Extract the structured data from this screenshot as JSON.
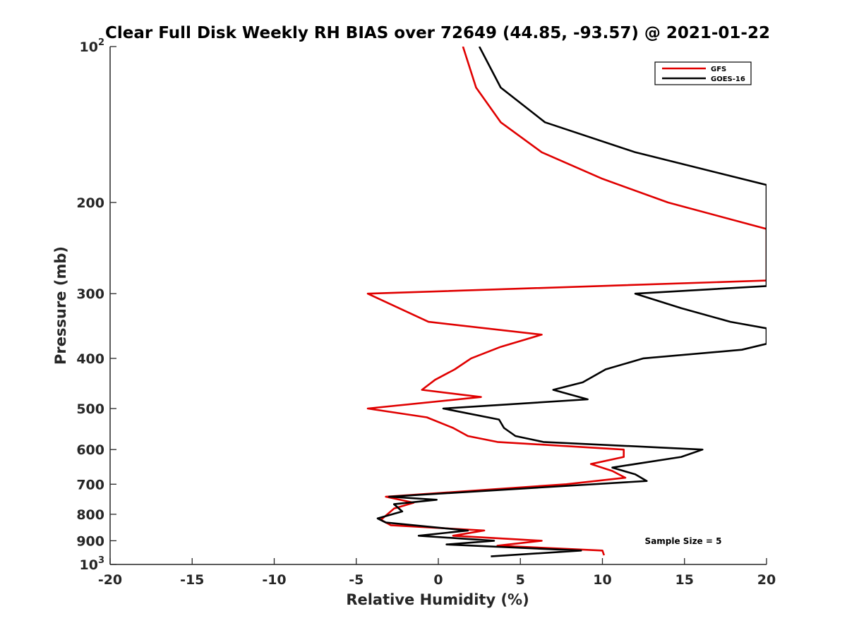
{
  "chart_data": {
    "type": "line",
    "title": "Clear Full Disk Weekly RH BIAS over 72649 (44.85, -93.57) @ 2021-01-22",
    "xlabel": "Relative Humidity (%)",
    "ylabel": "Pressure (mb)",
    "xlim": [
      -20,
      20
    ],
    "ylim": [
      100,
      1000
    ],
    "y_scale": "log",
    "y_reversed": true,
    "grid": false,
    "legend_position": "top-right",
    "x_ticks": [
      "-20",
      "-15",
      "-10",
      "-5",
      "0",
      "5",
      "10",
      "15",
      "20"
    ],
    "x_tick_values": [
      -20,
      -15,
      -10,
      -5,
      0,
      5,
      10,
      15,
      20
    ],
    "y_ticks": [
      {
        "value": 100,
        "base": "10",
        "exp": "2"
      },
      {
        "value": 200,
        "base": "200",
        "exp": ""
      },
      {
        "value": 300,
        "base": "300",
        "exp": ""
      },
      {
        "value": 400,
        "base": "400",
        "exp": ""
      },
      {
        "value": 500,
        "base": "500",
        "exp": ""
      },
      {
        "value": 600,
        "base": "600",
        "exp": ""
      },
      {
        "value": 700,
        "base": "700",
        "exp": ""
      },
      {
        "value": 800,
        "base": "800",
        "exp": ""
      },
      {
        "value": 900,
        "base": "900",
        "exp": ""
      },
      {
        "value": 1000,
        "base": "10",
        "exp": "3"
      }
    ],
    "series": [
      {
        "name": "GFS",
        "color": "#e00000",
        "points": [
          [
            1.5,
            100
          ],
          [
            2.3,
            120
          ],
          [
            3.8,
            140
          ],
          [
            6.3,
            160
          ],
          [
            10,
            180
          ],
          [
            14,
            200
          ],
          [
            20,
            225
          ],
          [
            20,
            283
          ],
          [
            -4.3,
            300
          ],
          [
            -0.6,
            340
          ],
          [
            6.3,
            360
          ],
          [
            3.8,
            380
          ],
          [
            2,
            400
          ],
          [
            1,
            420
          ],
          [
            -0.2,
            440
          ],
          [
            -1,
            460
          ],
          [
            2.6,
            475
          ],
          [
            -4.3,
            500
          ],
          [
            -0.7,
            520
          ],
          [
            0.9,
            545
          ],
          [
            1.8,
            565
          ],
          [
            3.6,
            580
          ],
          [
            11.3,
            600
          ],
          [
            11.3,
            620
          ],
          [
            9.3,
            640
          ],
          [
            10.6,
            660
          ],
          [
            11.4,
            680
          ],
          [
            7.8,
            700
          ],
          [
            -3.2,
            740
          ],
          [
            -1.5,
            760
          ],
          [
            -2.7,
            780
          ],
          [
            -3.1,
            800
          ],
          [
            -3.5,
            820
          ],
          [
            -2.9,
            840
          ],
          [
            2.8,
            860
          ],
          [
            0.9,
            880
          ],
          [
            6.3,
            900
          ],
          [
            3.6,
            920
          ],
          [
            10,
            940
          ],
          [
            10.1,
            960
          ]
        ]
      },
      {
        "name": "GOES-16",
        "color": "#000000",
        "points": [
          [
            2.5,
            100
          ],
          [
            3.8,
            120
          ],
          [
            6.5,
            140
          ],
          [
            12,
            160
          ],
          [
            20,
            185
          ],
          [
            20,
            290
          ],
          [
            12,
            300
          ],
          [
            14.8,
            320
          ],
          [
            17.8,
            340
          ],
          [
            20,
            350
          ],
          [
            20,
            375
          ],
          [
            18.5,
            385
          ],
          [
            12.5,
            400
          ],
          [
            10.2,
            420
          ],
          [
            8.8,
            445
          ],
          [
            7,
            460
          ],
          [
            9.1,
            480
          ],
          [
            0.3,
            500
          ],
          [
            3.7,
            525
          ],
          [
            4,
            545
          ],
          [
            4.7,
            565
          ],
          [
            6.4,
            580
          ],
          [
            16.1,
            600
          ],
          [
            14.8,
            620
          ],
          [
            10.6,
            650
          ],
          [
            12,
            670
          ],
          [
            12.7,
            690
          ],
          [
            -3,
            740
          ],
          [
            -0.1,
            750
          ],
          [
            -2.7,
            765
          ],
          [
            -2.2,
            790
          ],
          [
            -3.7,
            815
          ],
          [
            -3.2,
            830
          ],
          [
            1.8,
            860
          ],
          [
            -1.2,
            880
          ],
          [
            3.4,
            900
          ],
          [
            0.5,
            915
          ],
          [
            8.7,
            940
          ],
          [
            3.2,
            965
          ]
        ]
      }
    ],
    "annotation": "Sample Size = 5"
  }
}
